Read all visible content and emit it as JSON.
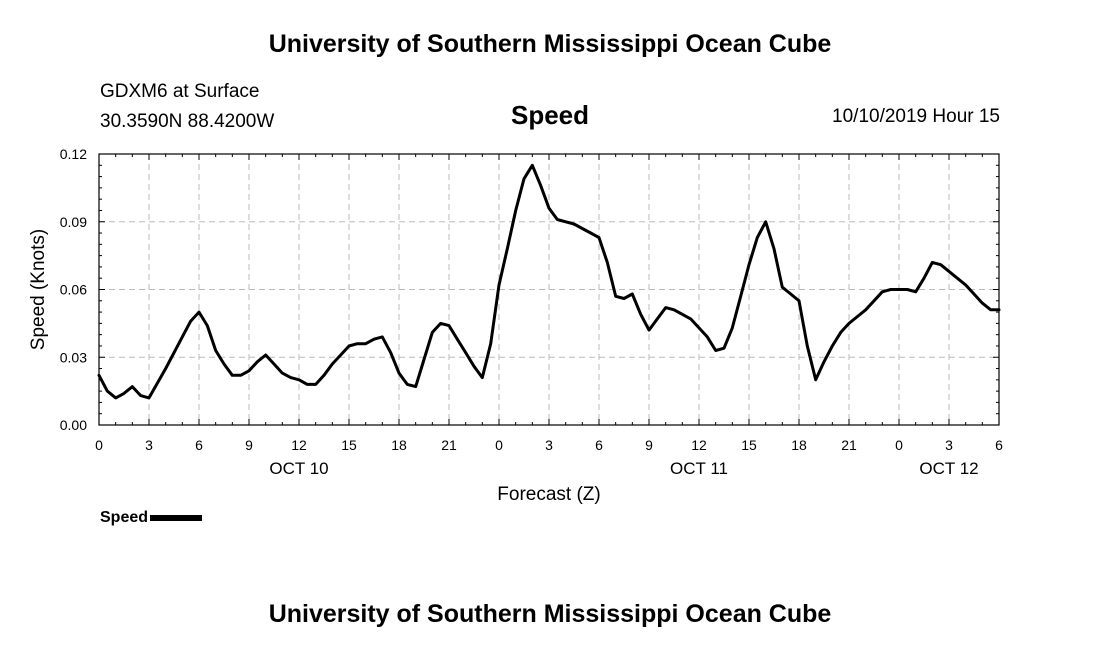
{
  "header": {
    "top_title": "University of Southern Mississippi Ocean Cube",
    "bottom_title": "University of Southern Mississippi Ocean Cube",
    "station_name": "GDXM6 at Surface",
    "station_coords": "30.3590N 88.4200W",
    "datetime": "10/10/2019 Hour 15"
  },
  "chart_data": {
    "type": "line",
    "title": "Speed",
    "xlabel": "Forecast (Z)",
    "ylabel": "Speed (Knots)",
    "ylim": [
      0,
      0.12
    ],
    "xlim_hours": [
      0,
      54
    ],
    "grid": true,
    "x_ticks": [
      {
        "hour": 0,
        "label": "0"
      },
      {
        "hour": 3,
        "label": "3"
      },
      {
        "hour": 6,
        "label": "6"
      },
      {
        "hour": 9,
        "label": "9"
      },
      {
        "hour": 12,
        "label": "12"
      },
      {
        "hour": 15,
        "label": "15"
      },
      {
        "hour": 18,
        "label": "18"
      },
      {
        "hour": 21,
        "label": "21"
      },
      {
        "hour": 24,
        "label": "0"
      },
      {
        "hour": 27,
        "label": "3"
      },
      {
        "hour": 30,
        "label": "6"
      },
      {
        "hour": 33,
        "label": "9"
      },
      {
        "hour": 36,
        "label": "12"
      },
      {
        "hour": 39,
        "label": "15"
      },
      {
        "hour": 42,
        "label": "18"
      },
      {
        "hour": 45,
        "label": "21"
      },
      {
        "hour": 48,
        "label": "0"
      },
      {
        "hour": 51,
        "label": "3"
      },
      {
        "hour": 54,
        "label": "6"
      }
    ],
    "y_ticks": [
      {
        "value": 0,
        "label": "0.00"
      },
      {
        "value": 0.03,
        "label": "0.03"
      },
      {
        "value": 0.06,
        "label": "0.06"
      },
      {
        "value": 0.09,
        "label": "0.09"
      },
      {
        "value": 0.12,
        "label": "0.12"
      }
    ],
    "date_labels": [
      {
        "hour": 12,
        "label": "OCT 10"
      },
      {
        "hour": 36,
        "label": "OCT 11"
      },
      {
        "hour": 51,
        "label": "OCT 12"
      }
    ],
    "legend": "Speed",
    "series": [
      {
        "name": "Speed",
        "x": [
          0,
          0.5,
          1,
          1.5,
          2,
          2.5,
          3,
          4,
          5,
          5.5,
          6,
          6.5,
          7,
          7.5,
          8,
          8.5,
          9,
          9.5,
          10,
          10.5,
          11,
          11.5,
          12,
          12.5,
          13,
          13.5,
          14,
          14.5,
          15,
          15.5,
          16,
          16.5,
          17,
          17.5,
          18,
          18.5,
          19,
          19.5,
          20,
          20.5,
          21,
          21.5,
          22,
          22.5,
          23,
          23.5,
          24,
          24.5,
          25,
          25.5,
          26,
          26.5,
          27,
          27.5,
          28,
          28.5,
          29,
          29.5,
          30,
          30.5,
          31,
          31.5,
          32,
          32.5,
          33,
          33.5,
          34,
          34.5,
          35,
          35.5,
          36,
          36.5,
          37,
          37.5,
          38,
          38.5,
          39,
          39.5,
          40,
          40.5,
          41,
          41.5,
          42,
          42.5,
          43,
          43.5,
          44,
          44.5,
          45,
          45.5,
          46,
          46.5,
          47,
          47.5,
          48,
          48.5,
          49,
          49.5,
          50,
          50.5,
          51,
          51.5,
          52,
          52.5,
          53,
          53.5,
          54
        ],
        "values": [
          0.022,
          0.015,
          0.012,
          0.014,
          0.017,
          0.013,
          0.012,
          0.025,
          0.039,
          0.046,
          0.05,
          0.044,
          0.033,
          0.027,
          0.022,
          0.022,
          0.024,
          0.028,
          0.031,
          0.027,
          0.023,
          0.021,
          0.02,
          0.018,
          0.018,
          0.022,
          0.027,
          0.031,
          0.035,
          0.036,
          0.036,
          0.038,
          0.039,
          0.032,
          0.023,
          0.018,
          0.017,
          0.029,
          0.041,
          0.045,
          0.044,
          0.038,
          0.032,
          0.026,
          0.021,
          0.036,
          0.062,
          0.078,
          0.095,
          0.109,
          0.115,
          0.106,
          0.096,
          0.091,
          0.09,
          0.089,
          0.087,
          0.085,
          0.083,
          0.072,
          0.057,
          0.056,
          0.058,
          0.049,
          0.042,
          0.047,
          0.052,
          0.051,
          0.049,
          0.047,
          0.043,
          0.039,
          0.033,
          0.034,
          0.043,
          0.057,
          0.071,
          0.083,
          0.09,
          0.078,
          0.061,
          0.058,
          0.055,
          0.035,
          0.02,
          0.028,
          0.035,
          0.041,
          0.045,
          0.048,
          0.051,
          0.055,
          0.059,
          0.06,
          0.06,
          0.06,
          0.059,
          0.065,
          0.072,
          0.071,
          0.068,
          0.065,
          0.062,
          0.058,
          0.054,
          0.051,
          0.051
        ]
      }
    ]
  }
}
